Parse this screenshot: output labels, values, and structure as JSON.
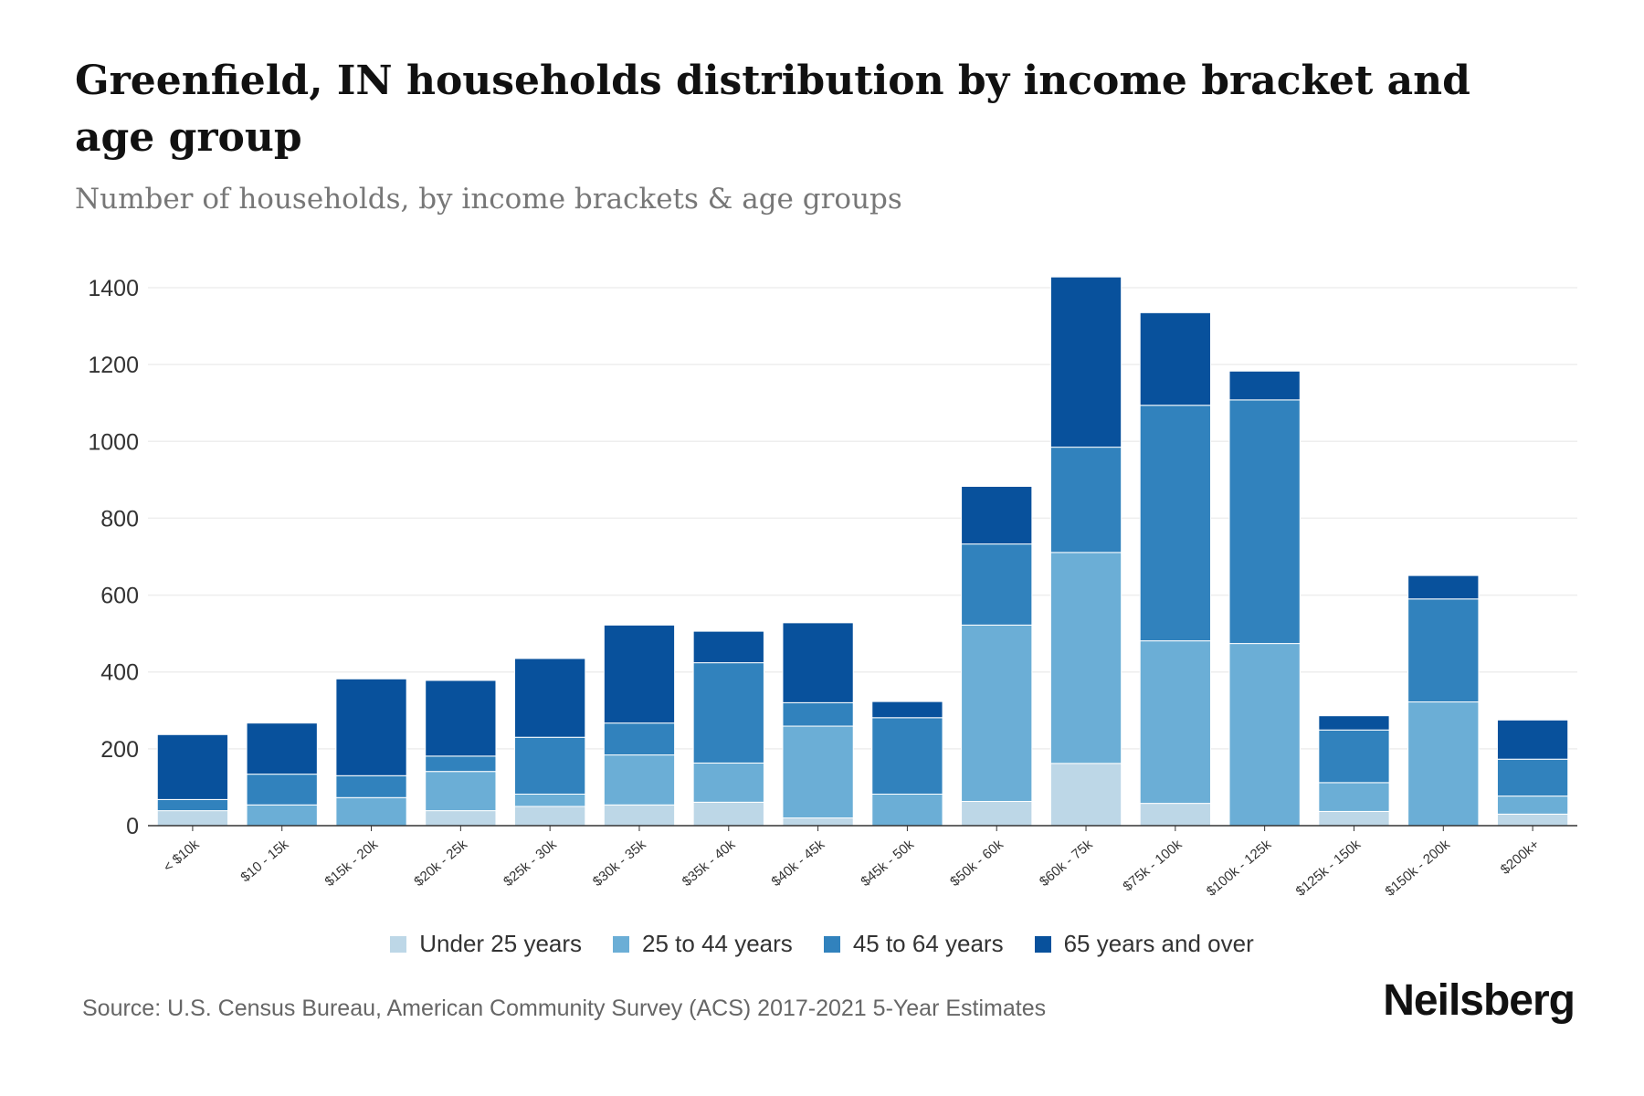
{
  "chart_data": {
    "type": "bar",
    "stacked": true,
    "title": "Greenfield, IN households distribution by income bracket and age group",
    "subtitle": "Number of households, by income brackets & age groups",
    "xlabel": "",
    "ylabel": "",
    "ylim": [
      0,
      1400
    ],
    "yticks": [
      0,
      200,
      400,
      600,
      800,
      1000,
      1200,
      1400
    ],
    "grid": true,
    "legend_position": "bottom",
    "categories": [
      "< $10k",
      "$10 - 15k",
      "$15k - 20k",
      "$20k - 25k",
      "$25k - 30k",
      "$30k - 35k",
      "$35k - 40k",
      "$40k - 45k",
      "$45k - 50k",
      "$50k - 60k",
      "$60k - 75k",
      "$75k - 100k",
      "$100k - 125k",
      "$125k - 150k",
      "$150k - 200k",
      "$200k+"
    ],
    "series": [
      {
        "name": "Under 25 years",
        "color": "#bdd7e7",
        "values": [
          39,
          0,
          0,
          39,
          50,
          54,
          61,
          20,
          0,
          63,
          162,
          58,
          0,
          37,
          0,
          30
        ]
      },
      {
        "name": "25 to 44 years",
        "color": "#6baed6",
        "values": [
          0,
          54,
          73,
          102,
          32,
          130,
          102,
          239,
          82,
          459,
          549,
          423,
          474,
          75,
          322,
          47
        ]
      },
      {
        "name": "45 to 64 years",
        "color": "#3182bd",
        "values": [
          29,
          80,
          57,
          40,
          148,
          83,
          261,
          61,
          199,
          211,
          274,
          613,
          634,
          137,
          268,
          96
        ]
      },
      {
        "name": "65 years and over",
        "color": "#08519c",
        "values": [
          169,
          133,
          252,
          197,
          205,
          255,
          82,
          208,
          42,
          150,
          443,
          241,
          75,
          37,
          61,
          102
        ]
      }
    ]
  },
  "source": "Source: U.S. Census Bureau, American Community Survey (ACS) 2017-2021 5-Year Estimates",
  "brand": "Neilsberg"
}
